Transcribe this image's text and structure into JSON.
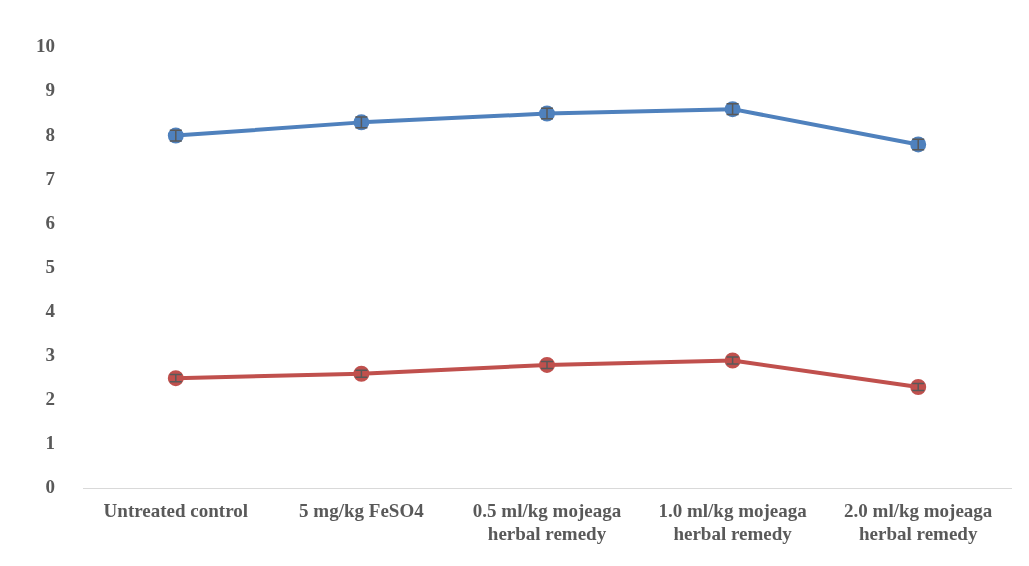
{
  "chart_data": {
    "type": "line",
    "categories": [
      "Untreated control",
      "5 mg/kg FeSO4",
      "0.5 ml/kg mojeaga herbal remedy",
      "1.0 ml/kg mojeaga herbal remedy",
      "2.0 ml/kg mojeaga herbal remedy"
    ],
    "series": [
      {
        "color": "#4f81bd",
        "values": [
          8.0,
          8.3,
          8.5,
          8.6,
          7.8
        ],
        "errors": [
          0.12,
          0.12,
          0.12,
          0.12,
          0.12
        ]
      },
      {
        "color": "#c0504d",
        "values": [
          2.5,
          2.6,
          2.8,
          2.9,
          2.3
        ],
        "errors": [
          0.08,
          0.08,
          0.08,
          0.08,
          0.08
        ]
      }
    ],
    "ylim": [
      0,
      10
    ],
    "yticks": [
      0,
      1,
      2,
      3,
      4,
      5,
      6,
      7,
      8,
      9,
      10
    ],
    "grid": false,
    "legend": false,
    "marker": "circle",
    "line_style": "solid"
  }
}
